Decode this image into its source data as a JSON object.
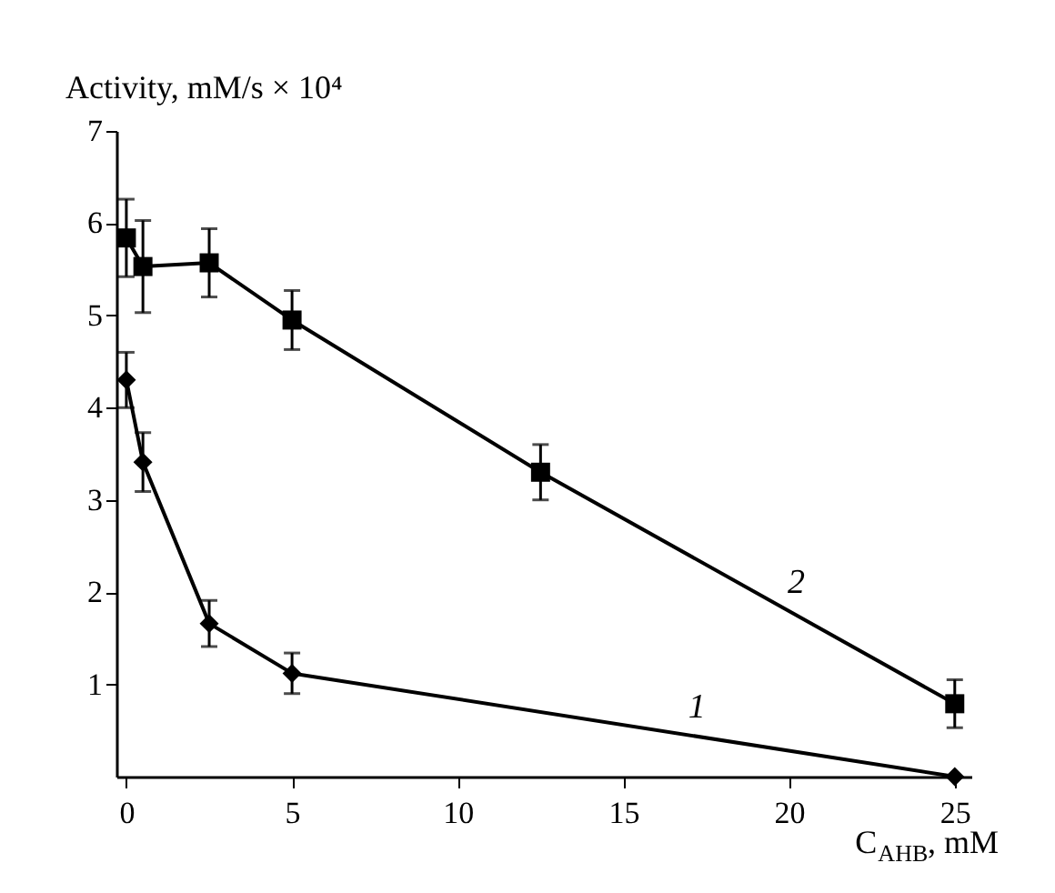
{
  "chart_data": {
    "type": "line",
    "ylabel": "Activity, mM/s × 10⁴",
    "xlabel": "C$_{AHB}$, mM",
    "xlim": [
      -0.3,
      25.5
    ],
    "xticks": [
      0,
      5,
      10,
      15,
      20,
      25
    ],
    "ylim": [
      0,
      7
    ],
    "yticks": [
      1,
      2,
      3,
      4,
      5,
      6,
      7
    ],
    "grid": false,
    "line_style": "solid",
    "series": [
      {
        "name": "1",
        "color": "#000000",
        "marker": "diamond",
        "x": [
          0,
          0.5,
          2.5,
          5,
          25
        ],
        "values": [
          4.3,
          3.41,
          1.66,
          1.12,
          0
        ],
        "errors": [
          0.3,
          0.32,
          0.25,
          0.22,
          null
        ]
      },
      {
        "name": "2",
        "color": "#000000",
        "marker": "square",
        "x": [
          0,
          0.5,
          2.5,
          5,
          12.5,
          25
        ],
        "values": [
          5.84,
          5.53,
          5.57,
          4.95,
          3.3,
          0.79
        ],
        "errors": [
          0.42,
          0.5,
          0.37,
          0.32,
          0.3,
          0.26
        ]
      }
    ]
  }
}
